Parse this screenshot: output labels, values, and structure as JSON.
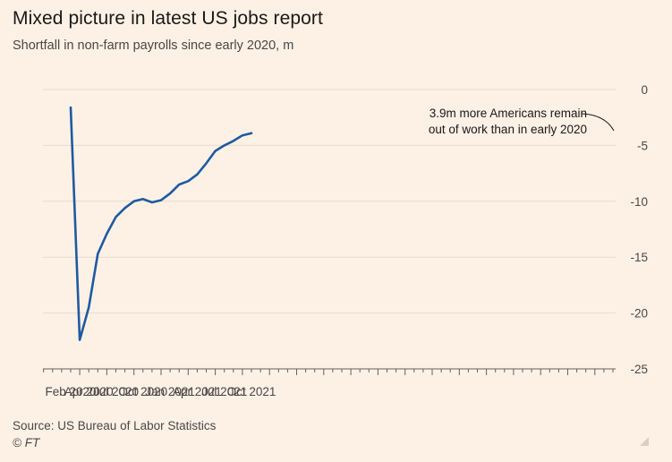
{
  "title": "Mixed picture in latest US jobs report",
  "subtitle": "Shortfall in non-farm payrolls since early 2020, m",
  "source": "Source: US Bureau of Labor Statistics",
  "copyright": "© FT",
  "colors": {
    "background": "#fdf1e6",
    "line": "#1f5aa0",
    "grid": "#e6dbd0",
    "axis": "#66605c"
  },
  "chart_data": {
    "type": "line",
    "title": "Mixed picture in latest US jobs report",
    "subtitle": "Shortfall in non-farm payrolls since early 2020, m",
    "x_tick_labels": [
      "Feb 2020",
      "Apr 2020",
      "Jul 2020",
      "Oct 2020",
      "Jan 2021",
      "Apr 2021",
      "Jul 2021",
      "Oct 2021"
    ],
    "y_tick_labels": [
      "0",
      "-5",
      "-10",
      "-15",
      "-20",
      "-25"
    ],
    "y_ticks": [
      0,
      -5,
      -10,
      -15,
      -20,
      -25
    ],
    "ylim": [
      -25,
      0
    ],
    "y_axis_position": "right",
    "grid": "horizontal",
    "series": [
      {
        "x": [
          "2020-03",
          "2020-04",
          "2020-05",
          "2020-06",
          "2020-07",
          "2020-08",
          "2020-09",
          "2020-10",
          "2020-11",
          "2020-12",
          "2021-01",
          "2021-02",
          "2021-03",
          "2021-04",
          "2021-05",
          "2021-06",
          "2021-07",
          "2021-08",
          "2021-09",
          "2021-10",
          "2021-11"
        ],
        "values": [
          -1.6,
          -22.4,
          -19.5,
          -14.7,
          -12.9,
          -11.4,
          -10.6,
          -10.0,
          -9.8,
          -10.1,
          -9.9,
          -9.3,
          -8.5,
          -8.2,
          -7.6,
          -6.6,
          -5.5,
          -5.0,
          -4.6,
          -4.1,
          -3.9
        ]
      }
    ],
    "annotation": {
      "lines": [
        "3.9m more Americans remain",
        "out of work than in early 2020"
      ]
    }
  }
}
